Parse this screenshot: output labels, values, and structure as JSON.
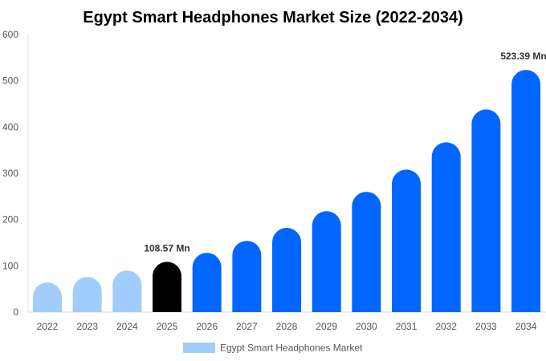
{
  "chart_data": {
    "type": "bar",
    "title": "Egypt Smart Headphones Market Size (2022-2034)",
    "xlabel": "",
    "ylabel": "",
    "ylim": [
      0,
      600
    ],
    "yticks": [
      "0",
      "100",
      "200",
      "300",
      "400",
      "500",
      "600"
    ],
    "grid": false,
    "legend_position": "bottom",
    "categories": [
      "2022",
      "2023",
      "2024",
      "2025",
      "2026",
      "2027",
      "2028",
      "2029",
      "2030",
      "2031",
      "2032",
      "2033",
      "2034"
    ],
    "series": [
      {
        "name": "Egypt Smart Headphones Market",
        "values": [
          64,
          76,
          90,
          108.57,
          128,
          154,
          182,
          218,
          260,
          308,
          367,
          438,
          523.39
        ],
        "colors": [
          "#a0cdfc",
          "#a0cdfc",
          "#a0cdfc",
          "#000000",
          "#0066ff",
          "#0066ff",
          "#0066ff",
          "#0066ff",
          "#0066ff",
          "#0066ff",
          "#0066ff",
          "#0066ff",
          "#0066ff"
        ]
      }
    ],
    "data_labels": [
      {
        "category": "2025",
        "text": "108.57 Mn"
      },
      {
        "category": "2034",
        "text": "523.39 Mn"
      }
    ],
    "legend_color": "#a0cdfc"
  }
}
